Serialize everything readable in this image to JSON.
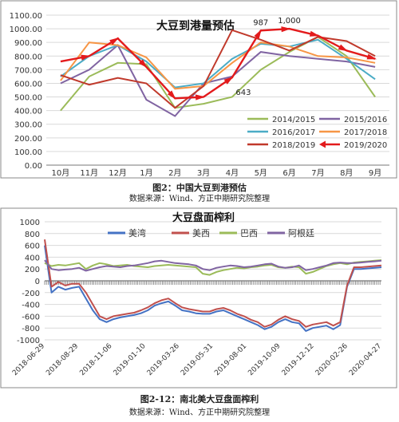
{
  "figure1": {
    "chart_data": {
      "type": "line",
      "title": "大豆到港量预估",
      "categories": [
        "10月",
        "11月",
        "12月",
        "1月",
        "2月",
        "3月",
        "4月",
        "5月",
        "6月",
        "7月",
        "8月",
        "9月"
      ],
      "ylim": [
        0,
        1100
      ],
      "yticks": [
        "0.00",
        "100.00",
        "200.00",
        "300.00",
        "400.00",
        "500.00",
        "600.00",
        "700.00",
        "800.00",
        "900.00",
        "1000.00",
        "1100.00"
      ],
      "grid": true,
      "legend_position": "bottom-right",
      "series": [
        {
          "name": "2014/2015",
          "color": "#9bbb59",
          "values": [
            400,
            650,
            750,
            740,
            420,
            450,
            500,
            700,
            830,
            940,
            800,
            500
          ]
        },
        {
          "name": "2015/2016",
          "color": "#8064a2",
          "values": [
            600,
            700,
            880,
            480,
            360,
            600,
            650,
            830,
            800,
            780,
            760,
            720
          ]
        },
        {
          "name": "2016/2017",
          "color": "#4bacc6",
          "values": [
            650,
            800,
            880,
            760,
            570,
            600,
            780,
            890,
            870,
            920,
            780,
            630
          ]
        },
        {
          "name": "2017/2018",
          "color": "#f79646",
          "values": [
            620,
            900,
            880,
            790,
            560,
            580,
            750,
            900,
            870,
            800,
            790,
            750
          ]
        },
        {
          "name": "2018/2019",
          "color": "#c0392b",
          "values": [
            660,
            590,
            640,
            600,
            420,
            580,
            990,
            920,
            840,
            940,
            910,
            800
          ]
        },
        {
          "name": "2019/2020",
          "color": "#e31a1c",
          "arrows": true,
          "values": [
            760,
            800,
            930,
            720,
            490,
            500,
            643,
            987,
            1000,
            950,
            840,
            780
          ]
        }
      ],
      "annotations": [
        {
          "text": "987",
          "category": "5月",
          "value": 987
        },
        {
          "text": "1,000",
          "category": "6月",
          "value": 1000
        },
        {
          "text": "643",
          "category": "4月",
          "value": 643
        }
      ]
    },
    "caption_title": "图2：中国大豆到港预估",
    "caption_source": "数据来源：Wind、方正中期研究院整理"
  },
  "figure2": {
    "chart_data": {
      "type": "line",
      "title": "大豆盘面榨利",
      "x_tick_labels": [
        "2018-06-29",
        "2018-08-29",
        "2018-11-06",
        "2019-01-10",
        "2019-03-26",
        "2019-05-31",
        "2019-08-01",
        "2019-10-09",
        "2019-12-12",
        "2020-02-26",
        "2020-04-27"
      ],
      "ylim": [
        -1000,
        1000
      ],
      "yticks": [
        "-1000",
        "-800",
        "-600",
        "-400",
        "-200",
        "0",
        "200",
        "400",
        "600",
        "800",
        "1000"
      ],
      "grid": true,
      "legend_position": "top",
      "series": [
        {
          "name": "美湾",
          "color": "#4472c4",
          "values": [
            600,
            -200,
            -100,
            -150,
            -120,
            -100,
            -300,
            -500,
            -650,
            -700,
            -650,
            -620,
            -600,
            -580,
            -550,
            -500,
            -420,
            -380,
            -350,
            -420,
            -500,
            -520,
            -550,
            -560,
            -560,
            -520,
            -500,
            -550,
            -600,
            -650,
            -700,
            -750,
            -820,
            -780,
            -700,
            -650,
            -700,
            -720,
            -850,
            -800,
            -780,
            -760,
            -820,
            -750,
            -100,
            200,
            200,
            210,
            220,
            230
          ]
        },
        {
          "name": "美西",
          "color": "#c0504d",
          "values": [
            700,
            -100,
            -20,
            -80,
            -50,
            -50,
            -200,
            -400,
            -600,
            -650,
            -600,
            -580,
            -560,
            -540,
            -500,
            -450,
            -380,
            -330,
            -300,
            -380,
            -450,
            -480,
            -500,
            -520,
            -520,
            -480,
            -460,
            -500,
            -560,
            -600,
            -660,
            -700,
            -780,
            -740,
            -660,
            -600,
            -650,
            -680,
            -780,
            -740,
            -720,
            -700,
            -760,
            -700,
            -80,
            230,
            230,
            240,
            250,
            260
          ]
        },
        {
          "name": "巴西",
          "color": "#9bbb59",
          "values": [
            300,
            250,
            270,
            260,
            280,
            300,
            200,
            260,
            300,
            280,
            250,
            260,
            270,
            250,
            240,
            230,
            250,
            260,
            270,
            260,
            250,
            240,
            230,
            120,
            100,
            150,
            180,
            200,
            220,
            210,
            230,
            240,
            260,
            270,
            230,
            220,
            240,
            230,
            120,
            150,
            200,
            250,
            280,
            300,
            280,
            310,
            320,
            330,
            340,
            350
          ]
        },
        {
          "name": "阿根廷",
          "color": "#8064a2",
          "values": [
            350,
            200,
            180,
            190,
            200,
            220,
            170,
            200,
            230,
            250,
            240,
            230,
            250,
            260,
            280,
            300,
            330,
            340,
            320,
            300,
            290,
            280,
            260,
            200,
            180,
            220,
            240,
            260,
            250,
            230,
            240,
            260,
            280,
            290,
            240,
            220,
            230,
            260,
            180,
            200,
            230,
            260,
            300,
            310,
            300,
            300,
            310,
            320,
            330,
            340
          ]
        }
      ]
    },
    "caption_title": "图2-12：南北美大豆盘面榨利",
    "caption_source": "数据来源：Wind、方正中期研究院整理"
  }
}
